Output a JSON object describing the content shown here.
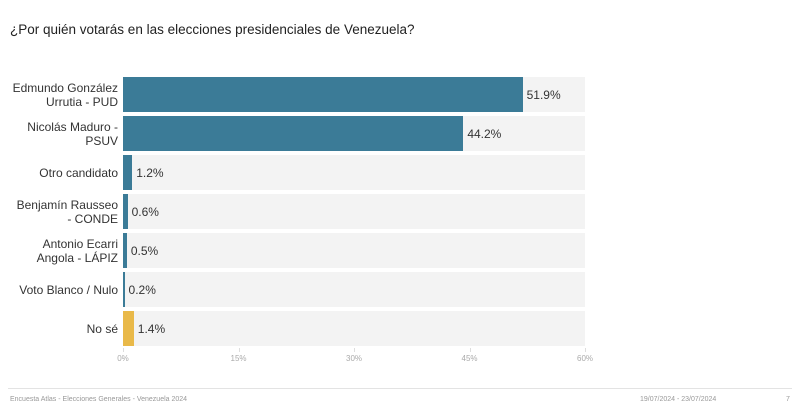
{
  "title": "¿Por quién votarás en las elecciones presidenciales de Venezuela?",
  "chart_data": {
    "type": "bar",
    "orientation": "horizontal",
    "categories": [
      "Edmundo González Urrutia - PUD",
      "Nicolás Maduro - PSUV",
      "Otro candidato",
      "Benjamín Rausseo - CONDE",
      "Antonio Ecarri Angola - LÁPIZ",
      "Voto Blanco / Nulo",
      "No sé"
    ],
    "values": [
      51.9,
      44.2,
      1.2,
      0.6,
      0.5,
      0.2,
      1.4
    ],
    "value_labels": [
      "51.9%",
      "44.2%",
      "1.2%",
      "0.6%",
      "0.5%",
      "0.2%",
      "1.4%"
    ],
    "colors": [
      "#3b7b97",
      "#3b7b97",
      "#3b7b97",
      "#3b7b97",
      "#3b7b97",
      "#3b7b97",
      "#e9b949"
    ],
    "xlim": [
      0,
      60
    ],
    "xticks": [
      {
        "value": 0,
        "label": "0%"
      },
      {
        "value": 15,
        "label": "15%"
      },
      {
        "value": 30,
        "label": "30%"
      },
      {
        "value": 45,
        "label": "45%"
      },
      {
        "value": 60,
        "label": "60%"
      }
    ]
  },
  "footer": {
    "left": "Encuesta Atlas - Elecciones Generales - Venezuela 2024",
    "dates": "19/07/2024 - 23/07/2024",
    "page": "7"
  }
}
